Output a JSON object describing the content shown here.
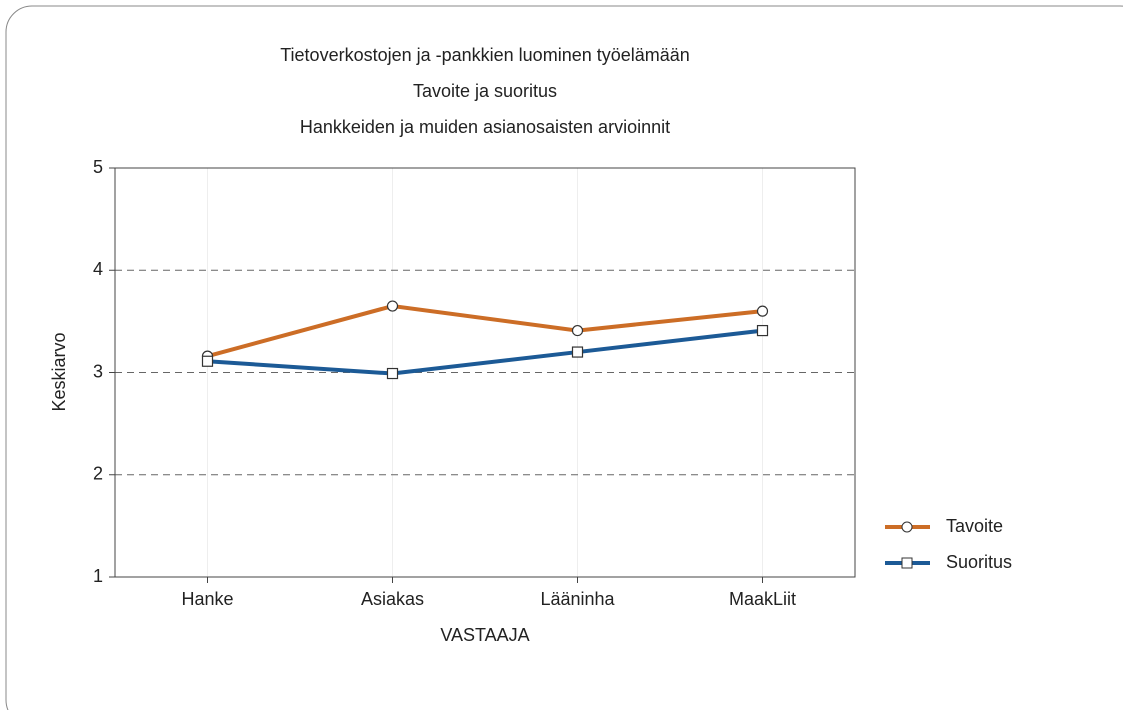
{
  "chart_data": {
    "type": "line",
    "title": [
      "Tietoverkostojen ja -pankkien luominen työelämään",
      "Tavoite ja suoritus",
      "Hankkeiden ja muiden asianosaisten arvioinnit"
    ],
    "x_label": "VASTAAJA",
    "y_label": "Keskiarvo",
    "categories": [
      "Hanke",
      "Asiakas",
      "Lääninha",
      "MaakLiit"
    ],
    "series": [
      {
        "name": "Tavoite",
        "color": "#cc6d26",
        "marker": "circle",
        "values": [
          3.16,
          3.65,
          3.41,
          3.6
        ]
      },
      {
        "name": "Suoritus",
        "color": "#1c5a96",
        "marker": "square",
        "values": [
          3.11,
          2.99,
          3.2,
          3.41
        ]
      }
    ],
    "ylim": [
      1,
      5
    ],
    "yticks": [
      1,
      2,
      3,
      4,
      5
    ],
    "grid": true,
    "legend": "right"
  }
}
